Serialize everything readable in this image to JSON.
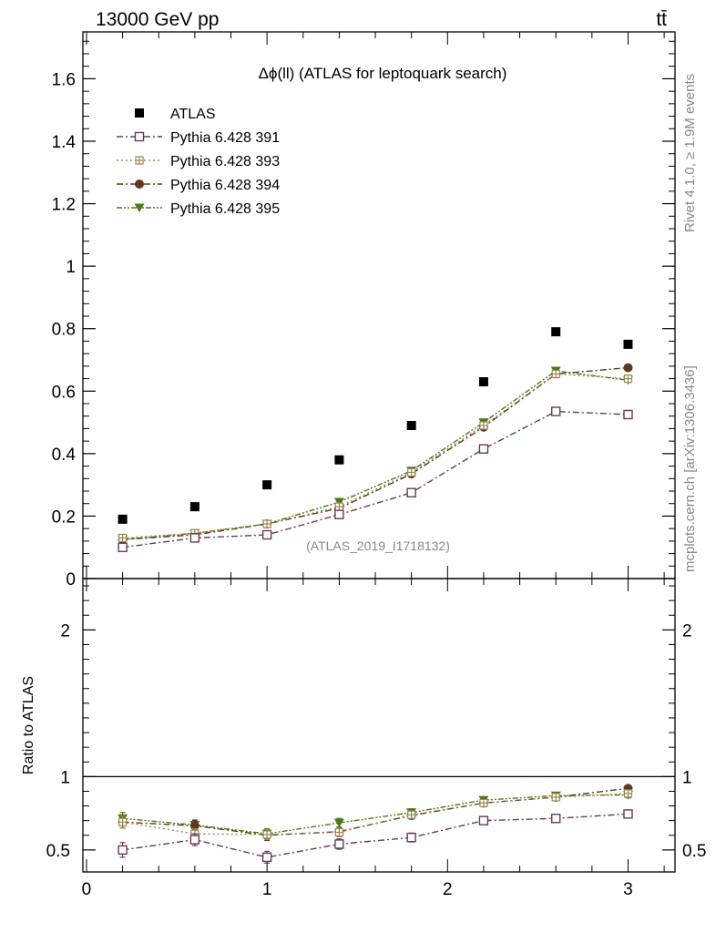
{
  "header": {
    "energy_label": "13000 GeV pp",
    "process_label": "tt̄"
  },
  "side": {
    "rivet": "Rivet 4.1.0, ≥ 1.9M events",
    "mcplots": "mcplots.cern.ch [arXiv:1306.3436]"
  },
  "chart_data": [
    {
      "type": "scatter",
      "panel": "main",
      "title": "Δϕ(ll) (ATLAS for leptoquark search)",
      "analysis_tag": "(ATLAS_2019_I1718132)",
      "ylim": [
        0,
        1.75
      ],
      "xlim": [
        -0.02,
        3.26
      ],
      "yticks": [
        0,
        0.2,
        0.4,
        0.6,
        0.8,
        1,
        1.2,
        1.4,
        1.6
      ],
      "ytick_labels": [
        "0",
        "0.2",
        "0.4",
        "0.6",
        "0.8",
        "1",
        "1.2",
        "1.4",
        "1.6"
      ],
      "x": [
        0.2,
        0.6,
        1.0,
        1.4,
        1.8,
        2.2,
        2.6,
        3.0
      ],
      "series": [
        {
          "name": "ATLAS",
          "color": "#000000",
          "marker": "filled-square",
          "values": [
            0.19,
            0.23,
            0.3,
            0.38,
            0.49,
            0.63,
            0.79,
            0.75
          ]
        },
        {
          "name": "Pythia 6.428 391",
          "color": "#6b3a55",
          "marker": "open-square",
          "line": "dash-dot",
          "values": [
            0.1,
            0.13,
            0.14,
            0.205,
            0.275,
            0.415,
            0.535,
            0.525
          ]
        },
        {
          "name": "Pythia 6.428 393",
          "color": "#9a8a55",
          "marker": "open-plus",
          "line": "dotted",
          "values": [
            0.13,
            0.145,
            0.175,
            0.23,
            0.34,
            0.49,
            0.655,
            0.64
          ]
        },
        {
          "name": "Pythia 6.428 394",
          "color": "#5c3a22",
          "marker": "filled-circle",
          "line": "dash-dot",
          "values": [
            0.125,
            0.14,
            0.175,
            0.225,
            0.335,
            0.485,
            0.655,
            0.675
          ]
        },
        {
          "name": "Pythia 6.428 395",
          "color": "#4a7a1a",
          "marker": "filled-triangle-down",
          "line": "dash-dot-dot",
          "values": [
            0.125,
            0.145,
            0.175,
            0.245,
            0.345,
            0.5,
            0.665,
            0.635
          ]
        }
      ]
    },
    {
      "type": "scatter",
      "panel": "ratio",
      "ylabel": "Ratio to ATLAS",
      "ylim": [
        0.35,
        2.35
      ],
      "xlim": [
        -0.02,
        3.26
      ],
      "yticks": [
        0.5,
        1,
        2
      ],
      "ytick_labels": [
        "0.5",
        "1",
        "2"
      ],
      "xticks": [
        0,
        1,
        2,
        3
      ],
      "xtick_labels": [
        "0",
        "1",
        "2",
        "3"
      ],
      "x": [
        0.2,
        0.6,
        1.0,
        1.4,
        1.8,
        2.2,
        2.6,
        3.0
      ],
      "series": [
        {
          "name": "Pythia 6.428 391",
          "values": [
            0.5,
            0.57,
            0.45,
            0.54,
            0.585,
            0.7,
            0.715,
            0.745
          ],
          "errors": [
            0.05,
            0.04,
            0.04,
            0.035,
            0.03,
            0.025,
            0.02,
            0.02
          ]
        },
        {
          "name": "Pythia 6.428 393",
          "values": [
            0.69,
            0.61,
            0.605,
            0.62,
            0.74,
            0.82,
            0.86,
            0.885
          ],
          "errors": [
            0.04,
            0.035,
            0.035,
            0.03,
            0.025,
            0.02,
            0.02,
            0.02
          ]
        },
        {
          "name": "Pythia 6.428 394",
          "values": [
            0.69,
            0.665,
            0.6,
            0.625,
            0.735,
            0.82,
            0.86,
            0.92
          ],
          "errors": [
            0.04,
            0.035,
            0.035,
            0.03,
            0.025,
            0.02,
            0.02,
            0.02
          ]
        },
        {
          "name": "Pythia 6.428 395",
          "values": [
            0.715,
            0.67,
            0.61,
            0.685,
            0.755,
            0.84,
            0.87,
            0.875
          ],
          "errors": [
            0.04,
            0.035,
            0.035,
            0.03,
            0.025,
            0.02,
            0.02,
            0.02
          ]
        }
      ]
    }
  ]
}
